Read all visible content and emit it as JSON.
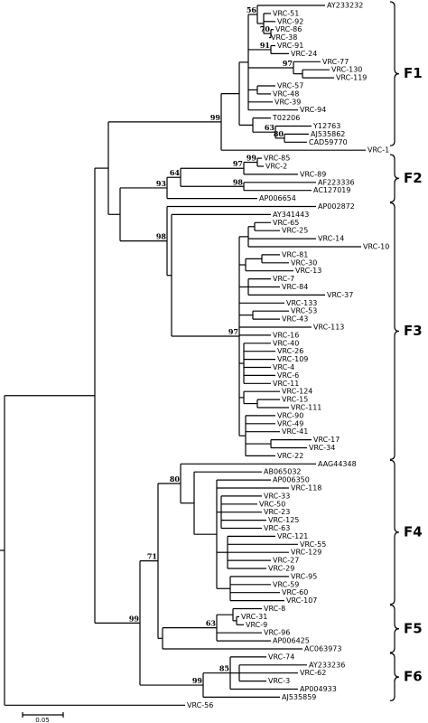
{
  "leaves": [
    "AY233232",
    "VRC-51",
    "VRC-92",
    "VRC-86",
    "VRC-38",
    "VRC-91",
    "VRC-24",
    "VRC-77",
    "VRC-130",
    "VRC-119",
    "VRC-57",
    "VRC-48",
    "VRC-39",
    "VRC-94",
    "T02206",
    "Y12763",
    "AJ535862",
    "CAD59770",
    "VRC-1",
    "VRC-85",
    "VRC-2",
    "VRC-89",
    "AF223336",
    "AC127019",
    "AP006654",
    "AP002872",
    "AY341443",
    "VRC-65",
    "VRC-25",
    "VRC-14",
    "VRC-10",
    "VRC-81",
    "VRC-30",
    "VRC-13",
    "VRC-7",
    "VRC-84",
    "VRC-37",
    "VRC-133",
    "VRC-53",
    "VRC-43",
    "VRC-113",
    "VRC-16",
    "VRC-40",
    "VRC-26",
    "VRC-109",
    "VRC-4",
    "VRC-6",
    "VRC-11",
    "VRC-124",
    "VRC-15",
    "VRC-111",
    "VRC-90",
    "VRC-49",
    "VRC-41",
    "VRC-17",
    "VRC-34",
    "VRC-22",
    "AAG44348",
    "AB065032",
    "AP006350",
    "VRC-118",
    "VRC-33",
    "VRC-50",
    "VRC-23",
    "VRC-125",
    "VRC-63",
    "VRC-121",
    "VRC-55",
    "VRC-129",
    "VRC-27",
    "VRC-29",
    "VRC-95",
    "VRC-59",
    "VRC-60",
    "VRC-107",
    "VRC-8",
    "VRC-31",
    "VRC-9",
    "VRC-96",
    "AP006425",
    "AC063973",
    "VRC-74",
    "AY233236",
    "VRC-62",
    "VRC-3",
    "AP004933",
    "AJ535859",
    "VRC-56"
  ],
  "bootstrap": [
    56,
    70,
    91,
    97,
    99,
    63,
    80,
    97,
    99,
    64,
    98,
    93,
    98,
    97,
    80,
    71,
    63,
    99,
    99,
    85
  ],
  "clades": [
    {
      "label": "F1"
    },
    {
      "label": "F2"
    },
    {
      "label": "F3"
    },
    {
      "label": "F4"
    },
    {
      "label": "F5"
    },
    {
      "label": "F6"
    }
  ],
  "scale_bar": {
    "label": "0.05"
  }
}
